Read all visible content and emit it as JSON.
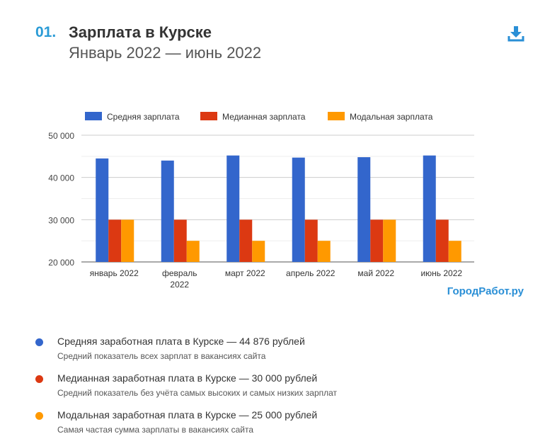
{
  "header": {
    "number": "01.",
    "title": "Зарплата в Курске",
    "subtitle": "Январь 2022 — июнь 2022"
  },
  "download_icon": "download-icon",
  "brand": "ГородРабот.ру",
  "chart_data": {
    "type": "bar",
    "categories": [
      [
        "январь 2022"
      ],
      [
        "февраль",
        "2022"
      ],
      [
        "март 2022"
      ],
      [
        "апрель 2022"
      ],
      [
        "май 2022"
      ],
      [
        "июнь 2022"
      ]
    ],
    "series": [
      {
        "name": "Средняя зарплата",
        "color": "#3366cc",
        "values": [
          44500,
          44000,
          45200,
          44700,
          44800,
          45200
        ]
      },
      {
        "name": "Медианная зарплата",
        "color": "#dc3912",
        "values": [
          30000,
          30000,
          30000,
          30000,
          30000,
          30000
        ]
      },
      {
        "name": "Модальная зарплата",
        "color": "#ff9900",
        "values": [
          30000,
          25000,
          25000,
          25000,
          30000,
          25000
        ]
      }
    ],
    "ylim": [
      20000,
      50000
    ],
    "yticks": [
      {
        "value": 20000,
        "label": "20 000"
      },
      {
        "value": 30000,
        "label": "30 000"
      },
      {
        "value": 40000,
        "label": "40 000"
      },
      {
        "value": 50000,
        "label": "50 000"
      }
    ],
    "minor_gridlines": [
      25000,
      35000,
      45000
    ],
    "grid": true,
    "legend_position": "top"
  },
  "stats": [
    {
      "color": "#3366cc",
      "title": "Средняя заработная плата в Курске — 44 876 рублей",
      "desc": "Средний показатель всех зарплат в вакансиях сайта"
    },
    {
      "color": "#dc3912",
      "title": "Медианная заработная плата в Курске — 30 000 рублей",
      "desc": "Средний показатель без учёта самых высоких и самых низких зарплат"
    },
    {
      "color": "#ff9900",
      "title": "Модальная заработная плата в Курске — 25 000 рублей",
      "desc": "Самая частая сумма зарплаты в вакансиях сайта"
    }
  ]
}
